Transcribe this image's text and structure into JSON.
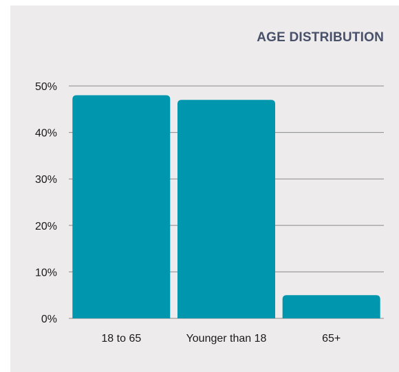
{
  "colors": {
    "card_background": "#edebeb",
    "bar": "#0096ad",
    "gridline": "#8a8a8a",
    "title": "#48506a",
    "text": "#1a1a1a"
  },
  "chart_data": {
    "type": "bar",
    "title": "AGE DISTRIBUTION",
    "xlabel": "",
    "ylabel": "",
    "categories": [
      "18 to 65",
      "Younger than 18",
      "65+"
    ],
    "values": [
      48,
      47,
      5
    ],
    "ylim": [
      0,
      50
    ],
    "yticks": [
      0,
      10,
      20,
      30,
      40,
      50
    ],
    "ytick_labels": [
      "0%",
      "10%",
      "20%",
      "30%",
      "40%",
      "50%"
    ],
    "grid": "horizontal",
    "legend": "none"
  }
}
